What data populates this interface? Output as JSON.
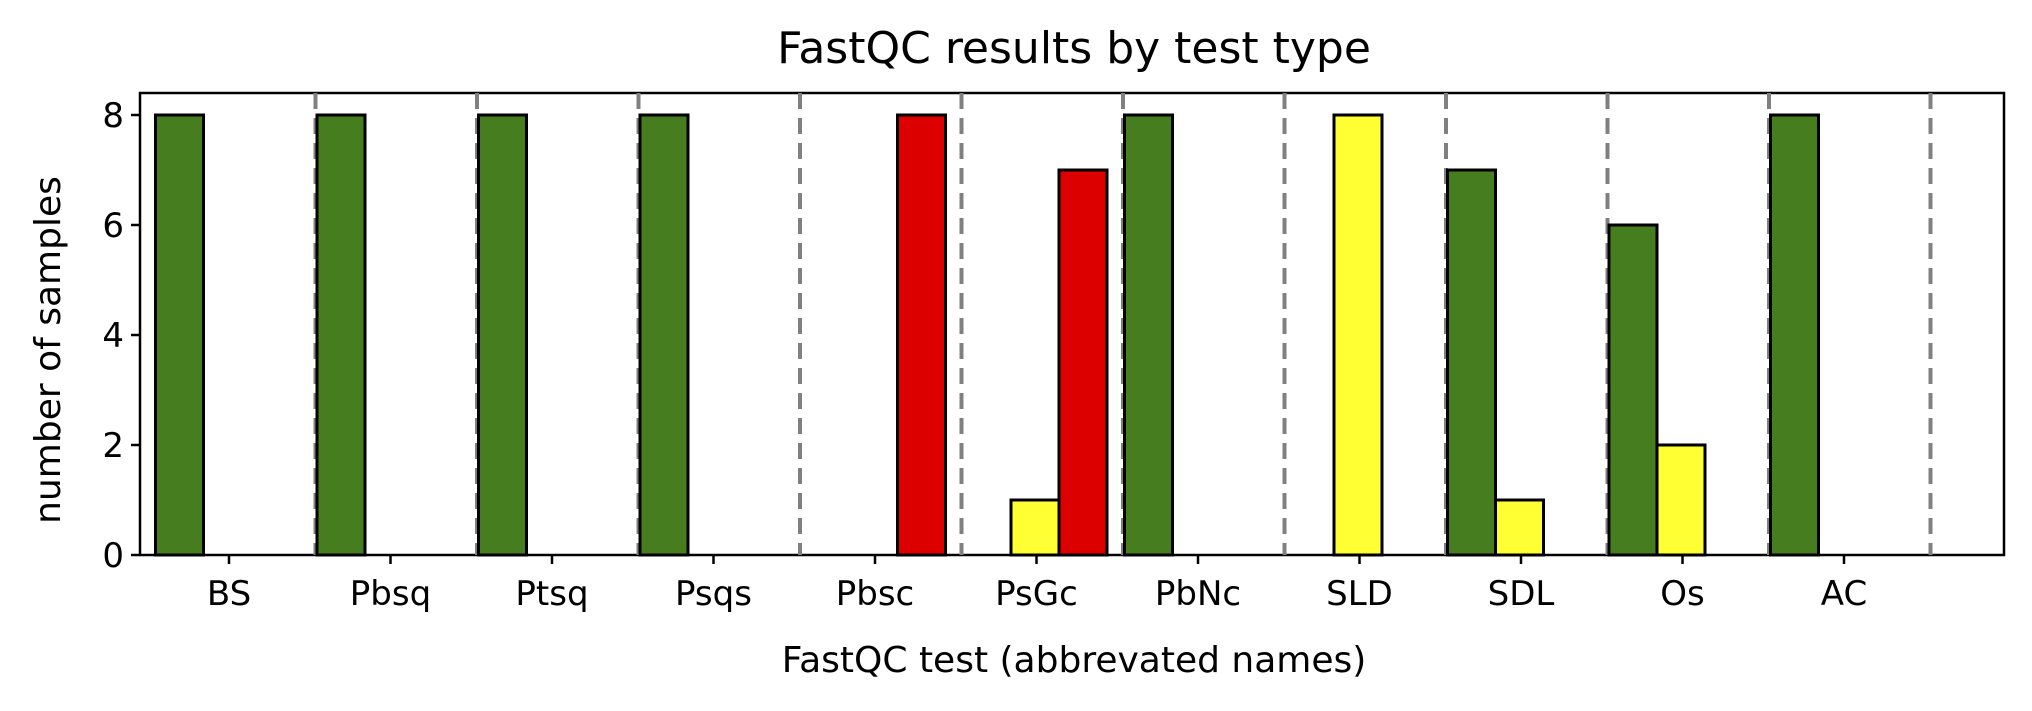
{
  "chart_data": {
    "type": "bar",
    "title": "FastQC results by test type",
    "xlabel": "FastQC test (abbrevated names)",
    "ylabel": "number of samples",
    "ylim": [
      0,
      8.4
    ],
    "yticks": [
      0,
      2,
      4,
      6,
      8
    ],
    "categories": [
      "BS",
      "Pbsq",
      "Ptsq",
      "Psqs",
      "Pbsc",
      "PsGc",
      "PbNc",
      "SLD",
      "SDL",
      "Os",
      "AC"
    ],
    "series": [
      {
        "color": "#467d1f",
        "values": [
          8,
          8,
          8,
          8,
          0,
          0,
          8,
          0,
          7,
          6,
          8
        ]
      },
      {
        "color": "#ffff33",
        "values": [
          0,
          0,
          0,
          0,
          0,
          1,
          0,
          8,
          1,
          2,
          0
        ]
      },
      {
        "color": "#dd0000",
        "values": [
          0,
          0,
          0,
          0,
          8,
          7,
          0,
          0,
          0,
          0,
          0
        ]
      }
    ],
    "grid": false,
    "legend": "none"
  }
}
